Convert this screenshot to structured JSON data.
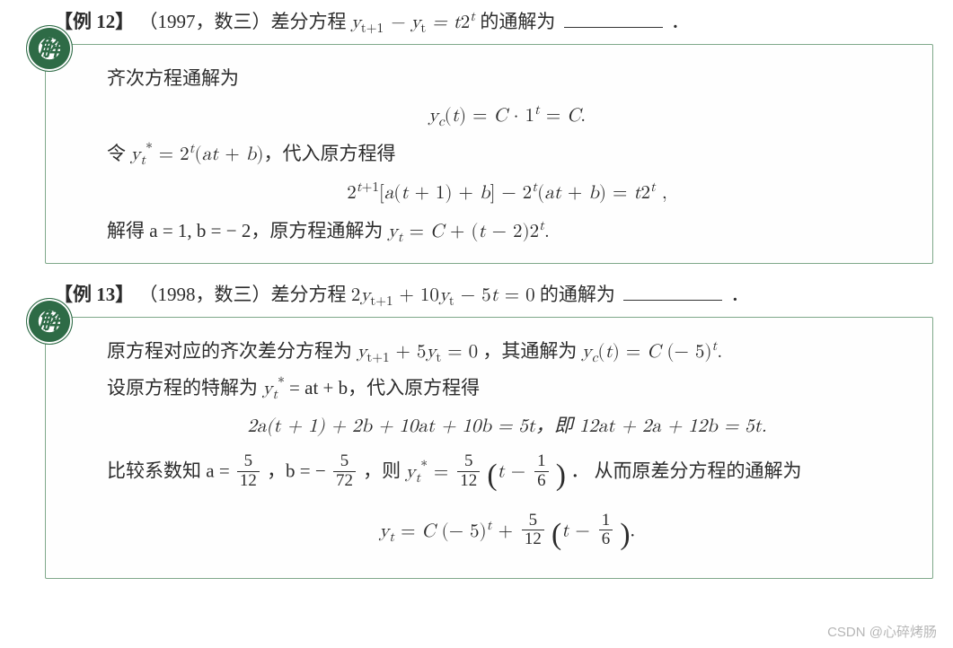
{
  "ex12": {
    "label": "【例 12】",
    "source_prefix": "（1997，数三）差分方程 ",
    "equation_inline": "y",
    "tail": " 的通解为",
    "period": "．",
    "solution": {
      "line1": "齐次方程通解为",
      "eq1_lhs": "y",
      "eq1_c": "c",
      "eq1_rhs_text": "(t) = C · 1",
      "eq1_exp": "t",
      "eq1_tail": " = C.",
      "line2_pre": "令 ",
      "line2_sym": "y",
      "line2_mid": " = 2",
      "line2_t": "t",
      "line2_paren": "(at + b)，代入原方程得",
      "eq2": "2",
      "eq2_exp": "t+1",
      "eq2_body": "[a(t + 1) + b] − 2",
      "eq2_exp2": "t",
      "eq2_tail": "(at + b) = t2",
      "eq2_exp3": "t",
      "eq2_end": " ,",
      "line3_pre": "解得 a = 1, b = − 2，原方程通解为 ",
      "line3_y": "y",
      "line3_sub": "t",
      "line3_eq": " = C + (t − 2)2",
      "line3_exp": "t",
      "line3_end": "."
    }
  },
  "ex13": {
    "label": "【例 13】",
    "source_prefix": "（1998，数三）差分方程 ",
    "tail": " 的通解为",
    "period": "．",
    "solution": {
      "line1_pre": "原方程对应的齐次差分方程为 ",
      "line1_mid": "，其通解为 ",
      "line2_pre": "设原方程的特解为 ",
      "line2_mid": " = at + b，代入原方程得",
      "eq1_text": "2a(t + 1) + 2b + 10at + 10b = 5t，即 12at + 2a + 12b = 5t.",
      "line3_pre": "比较系数知 a = ",
      "line3_mid1": "，b = − ",
      "line3_mid2": "，则 ",
      "line3_tail": "． 从而原差分方程的通解为",
      "frac1_n": "5",
      "frac1_d": "12",
      "frac2_n": "5",
      "frac2_d": "72",
      "frac3_n": "5",
      "frac3_d": "12",
      "frac4_n": "1",
      "frac4_d": "6",
      "frac5_n": "5",
      "frac5_d": "12",
      "frac6_n": "1",
      "frac6_d": "6"
    }
  },
  "badge_text": "解",
  "watermark": "CSDN @心碎烤肠",
  "colors": {
    "box_border": "#7fa88a",
    "badge_green": "#2e6b46",
    "text": "#2c2c2c",
    "background": "#ffffff"
  }
}
